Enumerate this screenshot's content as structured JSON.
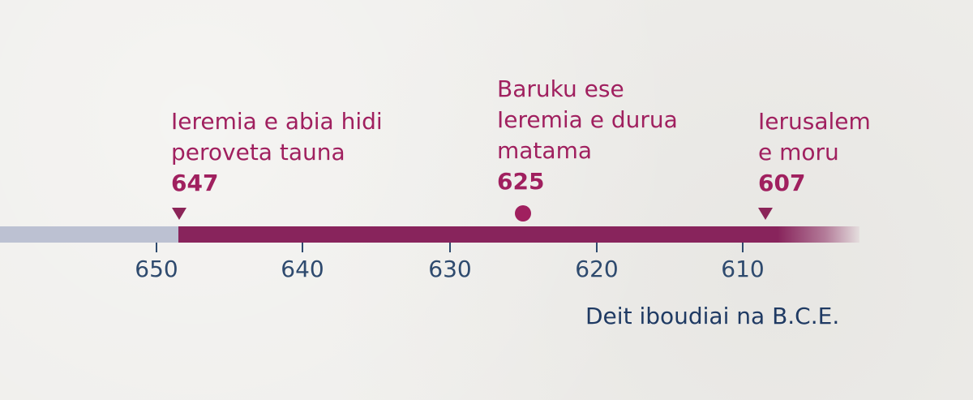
{
  "events": [
    {
      "lines": [
        "Ieremia e abia hidi",
        "peroveta tauna"
      ],
      "year": "647",
      "marker": "triangle"
    },
    {
      "lines": [
        "Baruku ese",
        "Ieremia e durua",
        "matama"
      ],
      "year": "625",
      "marker": "dot"
    },
    {
      "lines": [
        "Ierusalem",
        "e moru"
      ],
      "year": "607",
      "marker": "triangle"
    }
  ],
  "axis": {
    "ticks": [
      "650",
      "640",
      "630",
      "620",
      "610"
    ],
    "caption": "Deit iboudiai na B.C.E."
  },
  "colors": {
    "accent": "#a0205f",
    "bar": "#88245c",
    "bar_before": "#bcc1d2",
    "axis_text": "#2e4a6e",
    "background": "#efeeeb"
  }
}
